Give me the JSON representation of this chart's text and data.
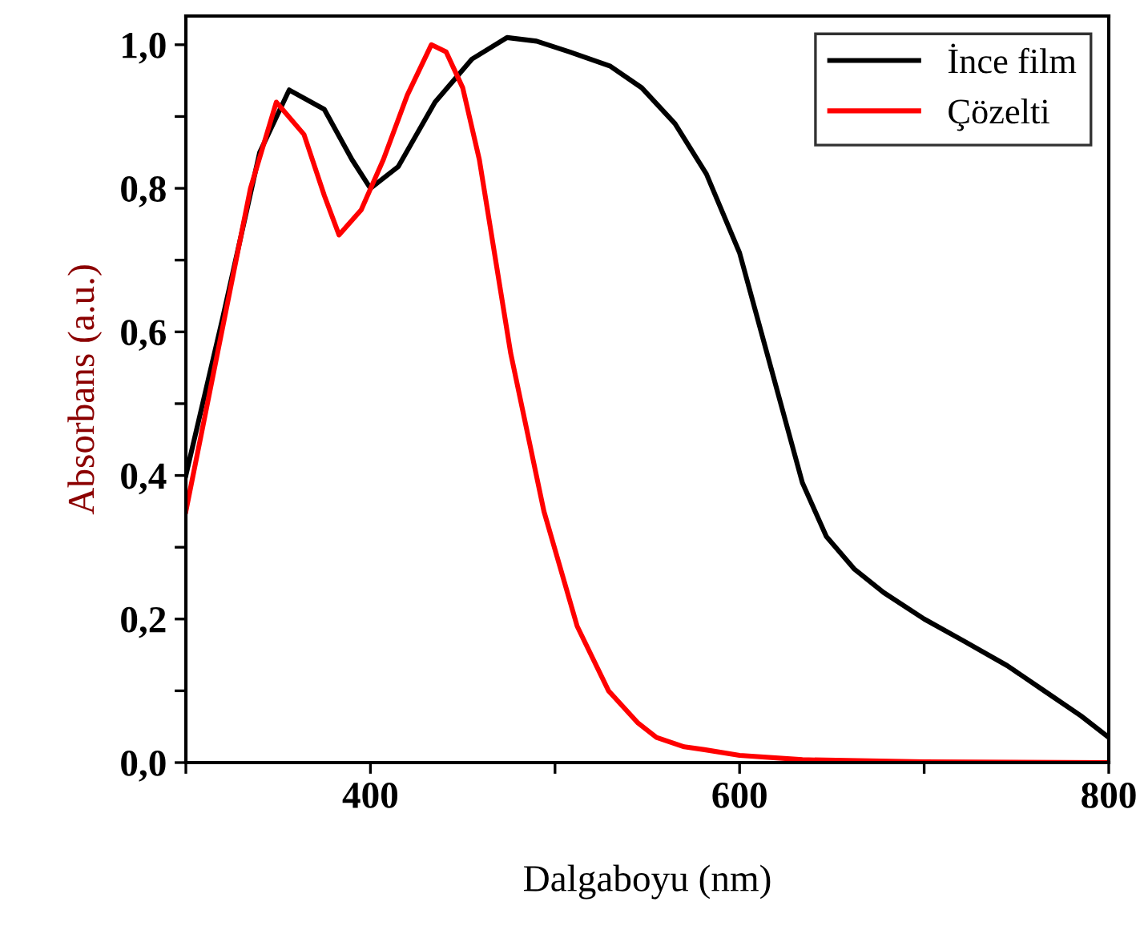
{
  "chart_data": {
    "type": "line",
    "xlabel": "Dalgaboyu (nm)",
    "ylabel": "Absorbans (a.u.)",
    "xlim": [
      300,
      800
    ],
    "ylim": [
      0,
      1.04
    ],
    "xticks": [
      {
        "value": 300,
        "label": null
      },
      {
        "value": 400,
        "label": "400"
      },
      {
        "value": 500,
        "label": null
      },
      {
        "value": 600,
        "label": "600"
      },
      {
        "value": 700,
        "label": null
      },
      {
        "value": 800,
        "label": "800"
      }
    ],
    "yticks": [
      {
        "value": 0,
        "label": "0,0"
      },
      {
        "value": 0.1,
        "label": null
      },
      {
        "value": 0.2,
        "label": "0,2"
      },
      {
        "value": 0.3,
        "label": null
      },
      {
        "value": 0.4,
        "label": "0,4"
      },
      {
        "value": 0.5,
        "label": null
      },
      {
        "value": 0.6,
        "label": "0,6"
      },
      {
        "value": 0.7,
        "label": null
      },
      {
        "value": 0.8,
        "label": "0,8"
      },
      {
        "value": 0.9,
        "label": null
      },
      {
        "value": 1.0,
        "label": "1,0"
      }
    ],
    "legend": "top right",
    "grid": false,
    "series": [
      {
        "name": "İnce film",
        "color": "#000000",
        "x": [
          300,
          320,
          340,
          356,
          375,
          390,
          400,
          415,
          435,
          455,
          474,
          490,
          508,
          530,
          547,
          565,
          582,
          600,
          617,
          634,
          647,
          662,
          678,
          700,
          721,
          745,
          765,
          785,
          800
        ],
        "values": [
          0.4,
          0.62,
          0.85,
          0.937,
          0.91,
          0.84,
          0.8,
          0.83,
          0.92,
          0.98,
          1.01,
          1.005,
          0.99,
          0.97,
          0.94,
          0.89,
          0.82,
          0.71,
          0.55,
          0.39,
          0.315,
          0.27,
          0.237,
          0.2,
          0.17,
          0.135,
          0.1,
          0.065,
          0.035
        ]
      },
      {
        "name": "Çözelti",
        "color": "#ff0000",
        "x": [
          300,
          321,
          335,
          349,
          364,
          375,
          383,
          395,
          407,
          420,
          433,
          441,
          450,
          459,
          476,
          494,
          512,
          529,
          545,
          555,
          570,
          581,
          600,
          634,
          700,
          800
        ],
        "values": [
          0.35,
          0.62,
          0.8,
          0.92,
          0.875,
          0.79,
          0.735,
          0.77,
          0.84,
          0.93,
          1.0,
          0.99,
          0.94,
          0.84,
          0.57,
          0.35,
          0.19,
          0.1,
          0.055,
          0.035,
          0.022,
          0.018,
          0.01,
          0.004,
          0.001,
          0.0
        ]
      }
    ]
  }
}
